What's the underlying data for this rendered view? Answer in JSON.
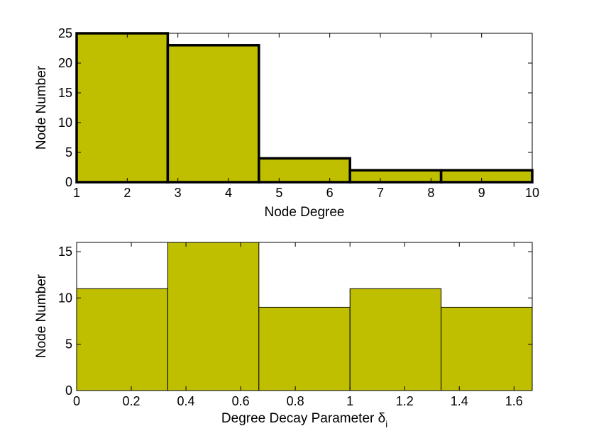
{
  "chart_data": [
    {
      "type": "bar",
      "bin_edges": [
        1,
        2.8,
        4.6,
        6.4,
        8.2,
        10
      ],
      "values": [
        25,
        23,
        4,
        2,
        2
      ],
      "xlabel": "Node Degree",
      "ylabel": "Node Number",
      "xlim": [
        1,
        10
      ],
      "ylim": [
        0,
        25
      ],
      "xticks": [
        "1",
        "2",
        "3",
        "4",
        "5",
        "6",
        "7",
        "8",
        "9",
        "10"
      ],
      "yticks": [
        "0",
        "5",
        "10",
        "15",
        "20",
        "25"
      ],
      "bar_color": "#bfbf00",
      "edge_color": "#000000",
      "grid": false
    },
    {
      "type": "bar",
      "bin_edges": [
        0,
        0.3333,
        0.6667,
        1.0,
        1.3333,
        1.6667
      ],
      "values": [
        11,
        16,
        9,
        11,
        9
      ],
      "xlabel": "Degree Decay Parameter δ",
      "xlabel_subscript": "i",
      "ylabel": "Node Number",
      "xlim": [
        0,
        1.6667
      ],
      "ylim": [
        0,
        16
      ],
      "xticks": [
        "0",
        "0.2",
        "0.4",
        "0.6",
        "0.8",
        "1",
        "1.2",
        "1.4",
        "1.6"
      ],
      "yticks": [
        "0",
        "5",
        "10",
        "15"
      ],
      "bar_color": "#bfbf00",
      "edge_color": "#000000",
      "grid": false
    }
  ]
}
